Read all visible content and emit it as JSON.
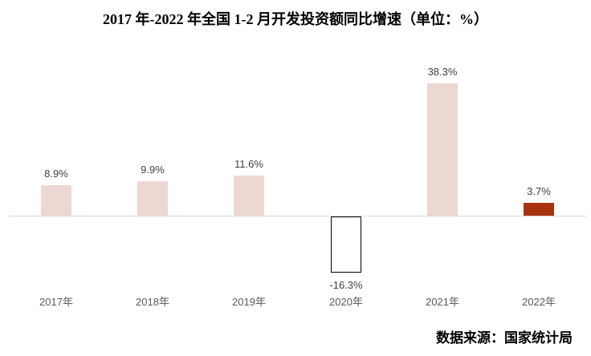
{
  "title": "2017 年-2022 年全国 1-2 月开发投资额同比增速（单位：%）",
  "source": "数据来源：国家统计局",
  "colors": {
    "bar_default": "#ecd8d2",
    "bar_negative_fill": "#ffffff",
    "bar_negative_border": "#000000",
    "bar_highlight": "#a7330f",
    "axis_line": "#d9d9d9",
    "value_label": "#3f3f3f",
    "category_label": "#595959"
  },
  "chart_data": {
    "type": "bar",
    "title": "2017 年-2022 年全国 1-2 月开发投资额同比增速（单位：%）",
    "categories": [
      "2017年",
      "2018年",
      "2019年",
      "2020年",
      "2021年",
      "2022年"
    ],
    "values": [
      8.9,
      9.9,
      11.6,
      -16.3,
      38.3,
      3.7
    ],
    "data_labels": [
      "8.9%",
      "9.9%",
      "11.6%",
      "-16.3%",
      "38.3%",
      "3.7%"
    ],
    "bar_fills": [
      "#ecd8d2",
      "#ecd8d2",
      "#ecd8d2",
      "#ffffff",
      "#ecd8d2",
      "#a7330f"
    ],
    "bar_border_colors": [
      "none",
      "none",
      "none",
      "#000000",
      "none",
      "none"
    ],
    "unit": "%",
    "ylim": [
      -20,
      42
    ],
    "grid": false,
    "legend": false,
    "xlabel": "",
    "ylabel": "",
    "source": "数据来源：国家统计局"
  }
}
